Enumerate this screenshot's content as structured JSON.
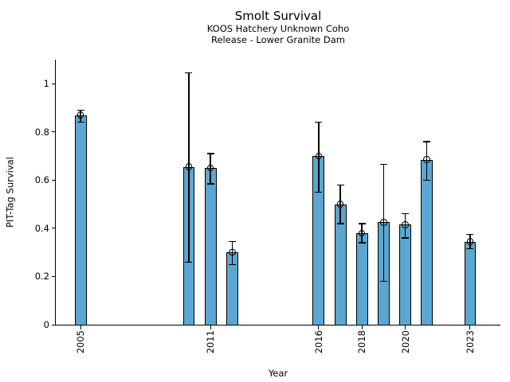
{
  "header": {
    "title": "Smolt Survival",
    "subtitle1": "KOOS Hatchery Unknown Coho",
    "subtitle2": "Release - Lower Granite Dam"
  },
  "chart_data": {
    "type": "bar",
    "title": "Smolt Survival",
    "subtitle": [
      "KOOS Hatchery Unknown Coho",
      "Release - Lower Granite Dam"
    ],
    "xlabel": "Year",
    "ylabel": "PIT-Tag Survival",
    "xlim": [
      2003.85,
      2024.4
    ],
    "ylim": [
      0,
      1.1
    ],
    "grid": false,
    "legend": "none",
    "bar_color": "#5AA7D1",
    "edge_color": "#000000",
    "bar_width_years": 0.55,
    "xticks": [
      "2005",
      "2011",
      "2016",
      "2018",
      "2020",
      "2023"
    ],
    "xtick_years": [
      2005,
      2011,
      2016,
      2018,
      2020,
      2023
    ],
    "yticks": [
      "0",
      "0.2",
      "0.4",
      "0.6",
      "0.8",
      "1"
    ],
    "ytick_values": [
      0,
      0.2,
      0.4,
      0.6,
      0.8,
      1
    ],
    "series": [
      {
        "year": 2005,
        "value": 0.87,
        "ci_low": 0.84,
        "ci_high": 0.89
      },
      {
        "year": 2010,
        "value": 0.655,
        "ci_low": 0.26,
        "ci_high": 1.045
      },
      {
        "year": 2011,
        "value": 0.65,
        "ci_low": 0.585,
        "ci_high": 0.71
      },
      {
        "year": 2012,
        "value": 0.3,
        "ci_low": 0.25,
        "ci_high": 0.345
      },
      {
        "year": 2016,
        "value": 0.7,
        "ci_low": 0.55,
        "ci_high": 0.84
      },
      {
        "year": 2017,
        "value": 0.5,
        "ci_low": 0.42,
        "ci_high": 0.58
      },
      {
        "year": 2018,
        "value": 0.38,
        "ci_low": 0.34,
        "ci_high": 0.42
      },
      {
        "year": 2019,
        "value": 0.425,
        "ci_low": 0.18,
        "ci_high": 0.665
      },
      {
        "year": 2020,
        "value": 0.415,
        "ci_low": 0.36,
        "ci_high": 0.46
      },
      {
        "year": 2021,
        "value": 0.685,
        "ci_low": 0.6,
        "ci_high": 0.76
      },
      {
        "year": 2023,
        "value": 0.345,
        "ci_low": 0.315,
        "ci_high": 0.375
      }
    ]
  }
}
